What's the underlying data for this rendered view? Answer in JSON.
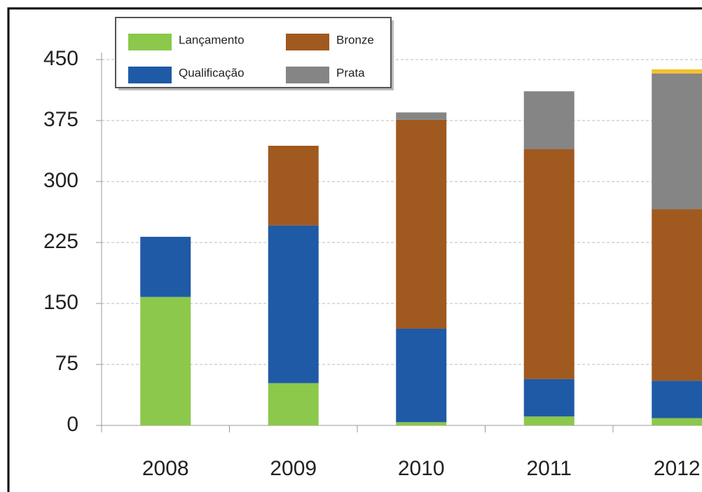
{
  "chart_data": {
    "type": "stacked-bar",
    "categories": [
      "2008",
      "2009",
      "2010",
      "2011",
      "2012"
    ],
    "series": [
      {
        "name": "Lançamento",
        "color": "#8cc84b",
        "values": [
          158,
          52,
          4,
          11,
          9
        ]
      },
      {
        "name": "Qualificação",
        "color": "#1f5aa6",
        "values": [
          74,
          194,
          115,
          46,
          46
        ]
      },
      {
        "name": "Bronze",
        "color": "#a0591f",
        "values": [
          0,
          98,
          257,
          283,
          211
        ]
      },
      {
        "name": "Prata",
        "color": "#858585",
        "values": [
          0,
          0,
          9,
          71,
          167
        ]
      },
      {
        "color": "#f5c22a",
        "values": [
          0,
          0,
          0,
          0,
          5
        ]
      }
    ],
    "ylim": [
      0,
      450
    ],
    "yticks": [
      0,
      75,
      150,
      225,
      300,
      375,
      450
    ],
    "grid": true
  }
}
